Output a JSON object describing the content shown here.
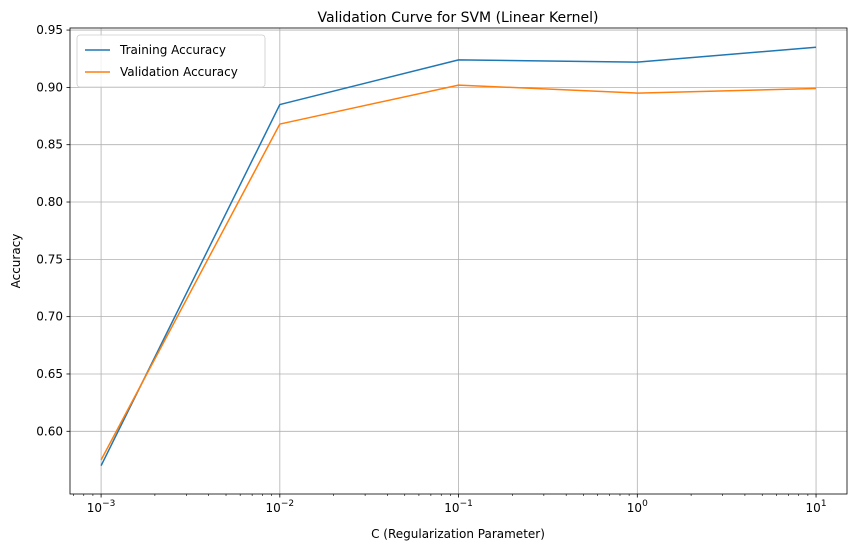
{
  "chart_data": {
    "type": "line",
    "title": "Validation Curve for SVM (Linear Kernel)",
    "xlabel": "C (Regularization Parameter)",
    "ylabel": "Accuracy",
    "xscale": "log",
    "x": [
      0.001,
      0.01,
      0.1,
      1,
      10
    ],
    "xlim": [
      0.00067,
      14.9
    ],
    "ylim": [
      0.5453,
      0.9518
    ],
    "xticks": [
      {
        "value": 0.001,
        "base": "10",
        "exp": "−3"
      },
      {
        "value": 0.01,
        "base": "10",
        "exp": "−2"
      },
      {
        "value": 0.1,
        "base": "10",
        "exp": "−1"
      },
      {
        "value": 1,
        "base": "10",
        "exp": "0"
      },
      {
        "value": 10,
        "base": "10",
        "exp": "1"
      }
    ],
    "yticks": [
      "0.60",
      "0.65",
      "0.70",
      "0.75",
      "0.80",
      "0.85",
      "0.90",
      "0.95"
    ],
    "grid": true,
    "legend_position": "top-left",
    "series": [
      {
        "name": "Training Accuracy",
        "color": "#1f77b4",
        "values": [
          0.57,
          0.885,
          0.924,
          0.922,
          0.935
        ]
      },
      {
        "name": "Validation Accuracy",
        "color": "#ff7f0e",
        "values": [
          0.575,
          0.868,
          0.902,
          0.895,
          0.899
        ]
      }
    ]
  }
}
